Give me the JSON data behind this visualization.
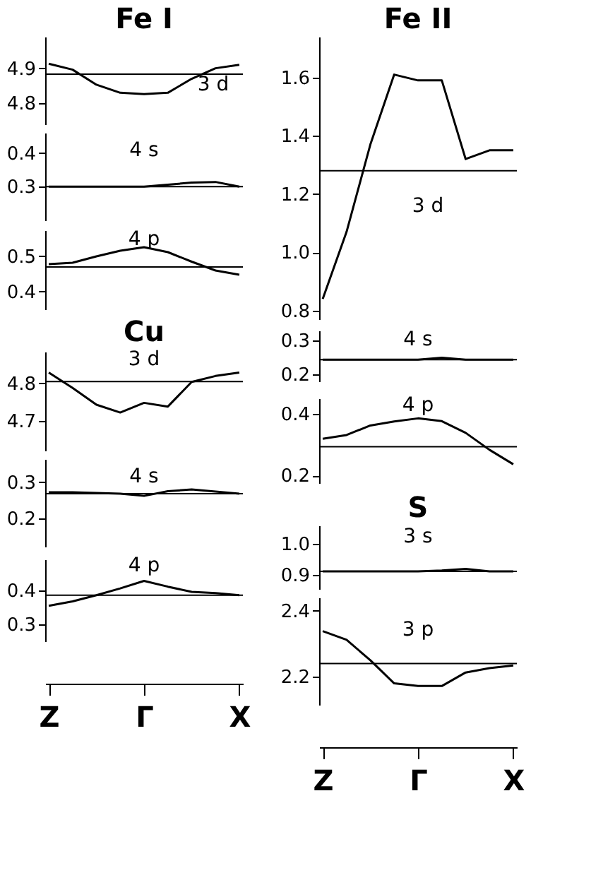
{
  "chart_data": [
    {
      "type": "line",
      "title": "Fe I",
      "annotations": [
        "3 d"
      ],
      "categories": [
        null,
        null,
        null,
        null,
        null,
        null,
        null,
        null,
        null
      ],
      "series": [
        {
          "color": "#000000",
          "values": [
            4.913,
            4.896,
            4.853,
            4.83,
            4.826,
            4.83,
            4.87,
            4.9,
            4.91
          ]
        }
      ],
      "ylim": [
        4.74,
        4.99
      ],
      "yticks": [
        4.8,
        4.9
      ],
      "ref_lines": [
        {
          "axis": "y",
          "value": 4.883,
          "color": "#000000"
        }
      ],
      "tick_labels": "y"
    },
    {
      "type": "line",
      "annotations": [
        "4 s"
      ],
      "categories": [
        null,
        null,
        null,
        null,
        null,
        null,
        null,
        null,
        null
      ],
      "series": [
        {
          "color": "#000000",
          "values": [
            0.3,
            0.3,
            0.3,
            0.3,
            0.3,
            0.306,
            0.312,
            0.314,
            0.3
          ]
        }
      ],
      "ylim": [
        0.2,
        0.46
      ],
      "yticks": [
        0.3,
        0.4
      ],
      "ref_lines": [
        {
          "axis": "y",
          "value": 0.3,
          "color": "#000000"
        }
      ],
      "tick_labels": "y"
    },
    {
      "type": "line",
      "annotations": [
        "4 p"
      ],
      "categories": [
        null,
        null,
        null,
        null,
        null,
        null,
        null,
        null,
        null
      ],
      "series": [
        {
          "color": "#000000",
          "values": [
            0.478,
            0.482,
            0.5,
            0.516,
            0.526,
            0.512,
            0.485,
            0.46,
            0.448
          ]
        }
      ],
      "ylim": [
        0.35,
        0.574
      ],
      "yticks": [
        0.4,
        0.5
      ],
      "ref_lines": [
        {
          "axis": "y",
          "value": 0.47,
          "color": "#000000"
        }
      ],
      "tick_labels": "y"
    },
    {
      "type": "line",
      "title": "Cu",
      "annotations": [
        "3 d"
      ],
      "categories": [
        null,
        null,
        null,
        null,
        null,
        null,
        null,
        null,
        null
      ],
      "series": [
        {
          "color": "#000000",
          "values": [
            4.829,
            4.788,
            4.743,
            4.722,
            4.748,
            4.738,
            4.804,
            4.82,
            4.829
          ]
        }
      ],
      "ylim": [
        4.62,
        4.885
      ],
      "yticks": [
        4.7,
        4.8
      ],
      "ref_lines": [
        {
          "axis": "y",
          "value": 4.805,
          "color": "#000000"
        }
      ],
      "tick_labels": "y"
    },
    {
      "type": "line",
      "annotations": [
        "4 s"
      ],
      "categories": [
        null,
        null,
        null,
        null,
        null,
        null,
        null,
        null,
        null
      ],
      "series": [
        {
          "color": "#000000",
          "values": [
            0.272,
            0.272,
            0.27,
            0.268,
            0.262,
            0.275,
            0.28,
            0.274,
            0.268
          ]
        }
      ],
      "ylim": [
        0.12,
        0.365
      ],
      "yticks": [
        0.2,
        0.3
      ],
      "ref_lines": [
        {
          "axis": "y",
          "value": 0.268,
          "color": "#000000"
        }
      ],
      "tick_labels": "y"
    },
    {
      "type": "line",
      "annotations": [
        "4 p"
      ],
      "categories": [
        "Z",
        null,
        null,
        null,
        "Γ",
        null,
        null,
        null,
        "X"
      ],
      "series": [
        {
          "color": "#000000",
          "values": [
            0.354,
            0.367,
            0.385,
            0.405,
            0.427,
            0.41,
            0.395,
            0.391,
            0.385
          ]
        }
      ],
      "ylim": [
        0.25,
        0.49
      ],
      "yticks": [
        0.3,
        0.4
      ],
      "ref_lines": [
        {
          "axis": "y",
          "value": 0.385,
          "color": "#000000"
        }
      ]
    },
    {
      "type": "line",
      "title": "Fe II",
      "annotations": [
        "3 d"
      ],
      "categories": [
        null,
        null,
        null,
        null,
        null,
        null,
        null,
        null,
        null
      ],
      "series": [
        {
          "color": "#000000",
          "values": [
            0.84,
            1.07,
            1.37,
            1.61,
            1.59,
            1.59,
            1.32,
            1.35,
            1.35
          ]
        }
      ],
      "ylim": [
        0.77,
        1.74
      ],
      "yticks": [
        0.8,
        {
          "value": 1.0,
          "label": "1.0"
        },
        1.2,
        1.4,
        1.6
      ],
      "ref_lines": [
        {
          "axis": "y",
          "value": 1.28,
          "color": "#000000"
        }
      ],
      "tick_labels": "y"
    },
    {
      "type": "line",
      "annotations": [
        "4 s"
      ],
      "categories": [
        null,
        null,
        null,
        null,
        null,
        null,
        null,
        null,
        null
      ],
      "series": [
        {
          "color": "#000000",
          "values": [
            0.244,
            0.244,
            0.244,
            0.244,
            0.244,
            0.25,
            0.244,
            0.244,
            0.244
          ]
        }
      ],
      "ylim": [
        0.18,
        0.33
      ],
      "yticks": [
        0.2,
        0.3
      ],
      "ref_lines": [
        {
          "axis": "y",
          "value": 0.244,
          "color": "#000000"
        }
      ],
      "tick_labels": "y"
    },
    {
      "type": "line",
      "annotations": [
        "4 p"
      ],
      "categories": [
        null,
        null,
        null,
        null,
        null,
        null,
        null,
        null,
        null
      ],
      "series": [
        {
          "color": "#000000",
          "values": [
            0.319,
            0.331,
            0.362,
            0.375,
            0.385,
            0.376,
            0.338,
            0.283,
            0.236
          ]
        }
      ],
      "ylim": [
        0.175,
        0.45
      ],
      "yticks": [
        0.2,
        0.4
      ],
      "ref_lines": [
        {
          "axis": "y",
          "value": 0.293,
          "color": "#000000"
        }
      ],
      "tick_labels": "y"
    },
    {
      "type": "line",
      "title": "S",
      "annotations": [
        "3 s"
      ],
      "categories": [
        null,
        null,
        null,
        null,
        null,
        null,
        null,
        null,
        null
      ],
      "series": [
        {
          "color": "#000000",
          "values": [
            0.912,
            0.912,
            0.912,
            0.912,
            0.912,
            0.915,
            0.92,
            0.912,
            0.912
          ]
        }
      ],
      "ylim": [
        0.855,
        1.06
      ],
      "yticks": [
        0.9,
        {
          "value": 1.0,
          "label": "1.0"
        }
      ],
      "ref_lines": [
        {
          "axis": "y",
          "value": 0.912,
          "color": "#000000"
        }
      ],
      "tick_labels": "y"
    },
    {
      "type": "line",
      "annotations": [
        "3 p"
      ],
      "categories": [
        "Z",
        null,
        null,
        null,
        "Γ",
        null,
        null,
        null,
        "X"
      ],
      "series": [
        {
          "color": "#000000",
          "values": [
            2.338,
            2.312,
            2.25,
            2.18,
            2.172,
            2.172,
            2.213,
            2.226,
            2.234
          ]
        }
      ],
      "ylim": [
        2.115,
        2.44
      ],
      "yticks": [
        2.2,
        2.4
      ],
      "ref_lines": [
        {
          "axis": "y",
          "value": 2.24,
          "color": "#000000"
        }
      ]
    }
  ]
}
